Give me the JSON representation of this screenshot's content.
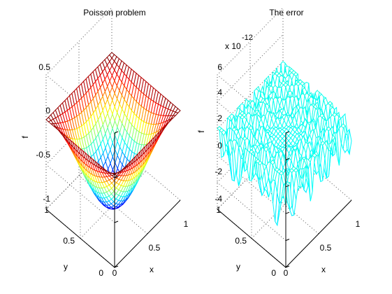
{
  "chart_data": [
    {
      "type": "surface",
      "title": "Poisson problem",
      "xlabel": "x",
      "ylabel": "y",
      "zlabel": "f",
      "xlim": [
        0,
        1
      ],
      "ylim": [
        0,
        1
      ],
      "zlim": [
        -1,
        0.5
      ],
      "x_ticks": [
        "0",
        "0.5",
        "1"
      ],
      "y_ticks": [
        "0",
        "0.5",
        "1"
      ],
      "z_ticks": [
        "-1",
        "-0.5",
        "0",
        "0.5"
      ],
      "grid": true,
      "colormap": "jet",
      "function": "f(x,y) = -sin(pi*x)*sin(pi*y)",
      "min_value": -1,
      "boundary_value": 0
    },
    {
      "type": "surface",
      "title": "The error",
      "xlabel": "x",
      "ylabel": "y",
      "zlabel": "f",
      "xlim": [
        0,
        1
      ],
      "ylim": [
        0,
        1
      ],
      "zlim": [
        -4,
        6
      ],
      "scale_label": "x 10",
      "scale_exponent": "-12",
      "x_ticks": [
        "0",
        "0.5",
        "1"
      ],
      "y_ticks": [
        "0",
        "0.5",
        "1"
      ],
      "z_ticks": [
        "-4",
        "-2",
        "0",
        "2",
        "4",
        "6"
      ],
      "grid": true,
      "colormap": "jet",
      "approx_range": [
        -4,
        2
      ]
    }
  ],
  "colors": {
    "background": "#ffffff",
    "axes": "#000000",
    "grid": "#444444"
  }
}
